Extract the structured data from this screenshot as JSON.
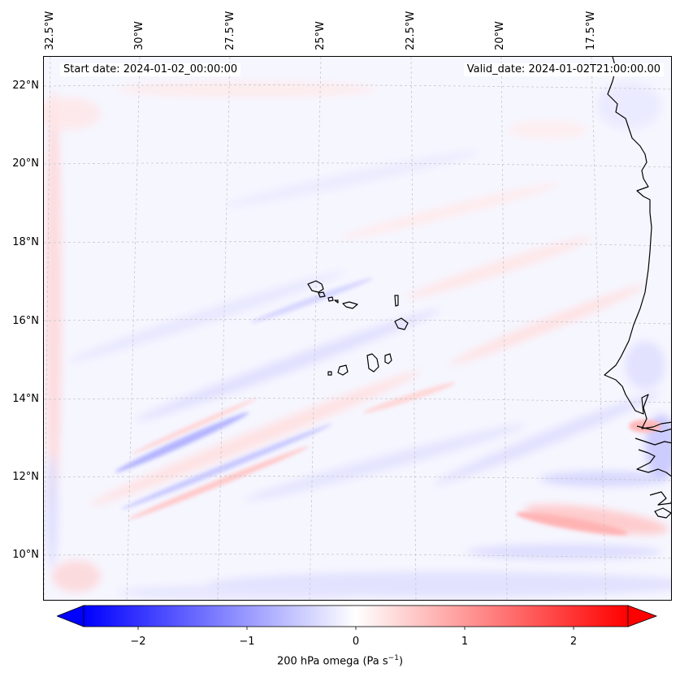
{
  "map": {
    "title_left": "Start date: 2024-01-02_00:00:00",
    "title_right": "Valid_date: 2024-01-02T21:00:00.00",
    "region": "Cape Verde islands and West African coast",
    "longitude_labels": [
      "32.5°W",
      "30°W",
      "27.5°W",
      "25°W",
      "22.5°W",
      "20°W",
      "17.5°W"
    ],
    "latitude_labels": [
      "22°N",
      "20°N",
      "18°N",
      "16°N",
      "14°N",
      "12°N",
      "10°N"
    ]
  },
  "colorbar": {
    "label_main": "200 hPa omega (Pa s",
    "label_exponent": "−1",
    "label_close": ")",
    "ticks": [
      "−2",
      "−1",
      "0",
      "1",
      "2"
    ],
    "tick_values": [
      -2,
      -1,
      0,
      1,
      2
    ],
    "range": [
      -2.5,
      2.5
    ],
    "low_color": "#0000ff",
    "mid_color": "#ffffff",
    "high_color": "#ff0000",
    "extend": "both"
  },
  "colors": {
    "coastline": "#000000",
    "gridline": "#c8c8c8",
    "background": "#f7f7ff"
  }
}
